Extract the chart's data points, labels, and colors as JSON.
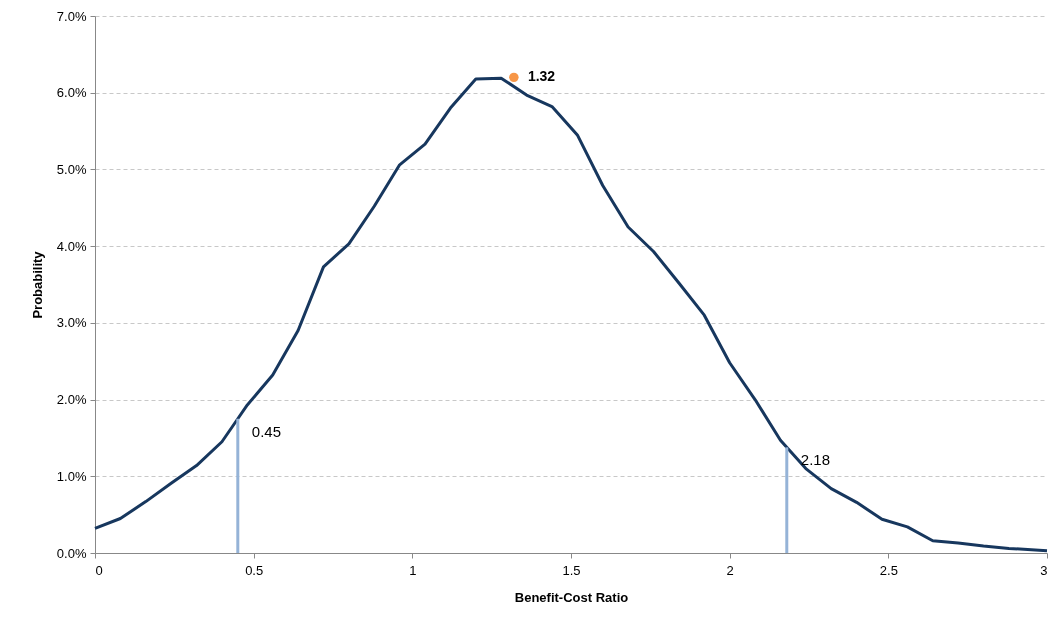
{
  "chart_data": {
    "type": "line",
    "xlabel": "Benefit-Cost Ratio",
    "ylabel": "Probability",
    "xlim": [
      0,
      3
    ],
    "xticks": [
      0,
      0.5,
      1,
      1.5,
      2,
      2.5,
      3
    ],
    "ylim": [
      0,
      7
    ],
    "yticks": [
      {
        "value": 0,
        "label": "0.0%"
      },
      {
        "value": 1,
        "label": "1.0%"
      },
      {
        "value": 2,
        "label": "2.0%"
      },
      {
        "value": 3,
        "label": "3.0%"
      },
      {
        "value": 4,
        "label": "4.0%"
      },
      {
        "value": 5,
        "label": "5.0%"
      },
      {
        "value": 6,
        "label": "6.0%"
      },
      {
        "value": 7,
        "label": "7.0%"
      }
    ],
    "grid": "y",
    "line_style": "solid",
    "series": [
      {
        "color": "#17375e",
        "x": [
          0,
          0.08,
          0.16,
          0.24,
          0.32,
          0.4,
          0.45,
          0.48,
          0.56,
          0.64,
          0.72,
          0.8,
          0.88,
          0.96,
          1.04,
          1.12,
          1.2,
          1.28,
          1.36,
          1.44,
          1.52,
          1.6,
          1.68,
          1.76,
          1.84,
          1.92,
          2,
          2.08,
          2.16,
          2.24,
          2.32,
          2.4,
          2.48,
          2.56,
          2.64,
          2.72,
          2.8,
          2.88,
          3
        ],
        "values": [
          0.32,
          0.45,
          0.67,
          0.91,
          1.14,
          1.45,
          1.75,
          1.93,
          2.32,
          2.9,
          3.73,
          4.03,
          4.52,
          5.06,
          5.33,
          5.8,
          6.18,
          6.19,
          5.97,
          5.82,
          5.45,
          4.79,
          4.25,
          3.93,
          3.52,
          3.1,
          2.48,
          2,
          1.47,
          1.1,
          0.84,
          0.66,
          0.44,
          0.34,
          0.16,
          0.13,
          0.09,
          0.06,
          0.03
        ]
      },
      {
        "type": "scatter",
        "color": "#f79646",
        "marker": "circle",
        "x": [
          1.32
        ],
        "values": [
          6.2
        ]
      }
    ],
    "annotations": [
      {
        "text": "1.32",
        "x": 1.32,
        "y": 6.2
      }
    ],
    "ref_lines": [
      {
        "axis": "x",
        "value": 0.45,
        "label": "0.45",
        "color": "#95b3d7"
      },
      {
        "axis": "x",
        "value": 2.18,
        "label": "2.18",
        "color": "#95b3d7"
      }
    ]
  }
}
